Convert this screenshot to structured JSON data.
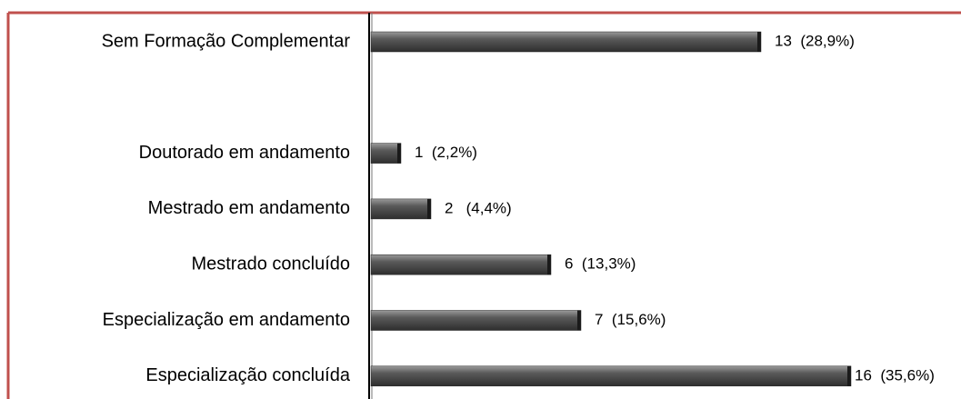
{
  "chart_data": {
    "type": "bar",
    "orientation": "horizontal",
    "categories": [
      "Sem Formação Complementar",
      null,
      "Doutorado em andamento",
      "Mestrado em andamento",
      "Mestrado concluído",
      "Especialização em andamento",
      "Especialização concluída"
    ],
    "values": [
      13,
      null,
      1,
      2,
      6,
      7,
      16
    ],
    "value_labels": [
      "13  (28,9%)",
      null,
      "1  (2,2%)",
      "2   (4,4%)",
      "6  (13,3%)",
      "7  (15,6%)",
      "16  (35,6%)"
    ],
    "color": "#555555"
  }
}
